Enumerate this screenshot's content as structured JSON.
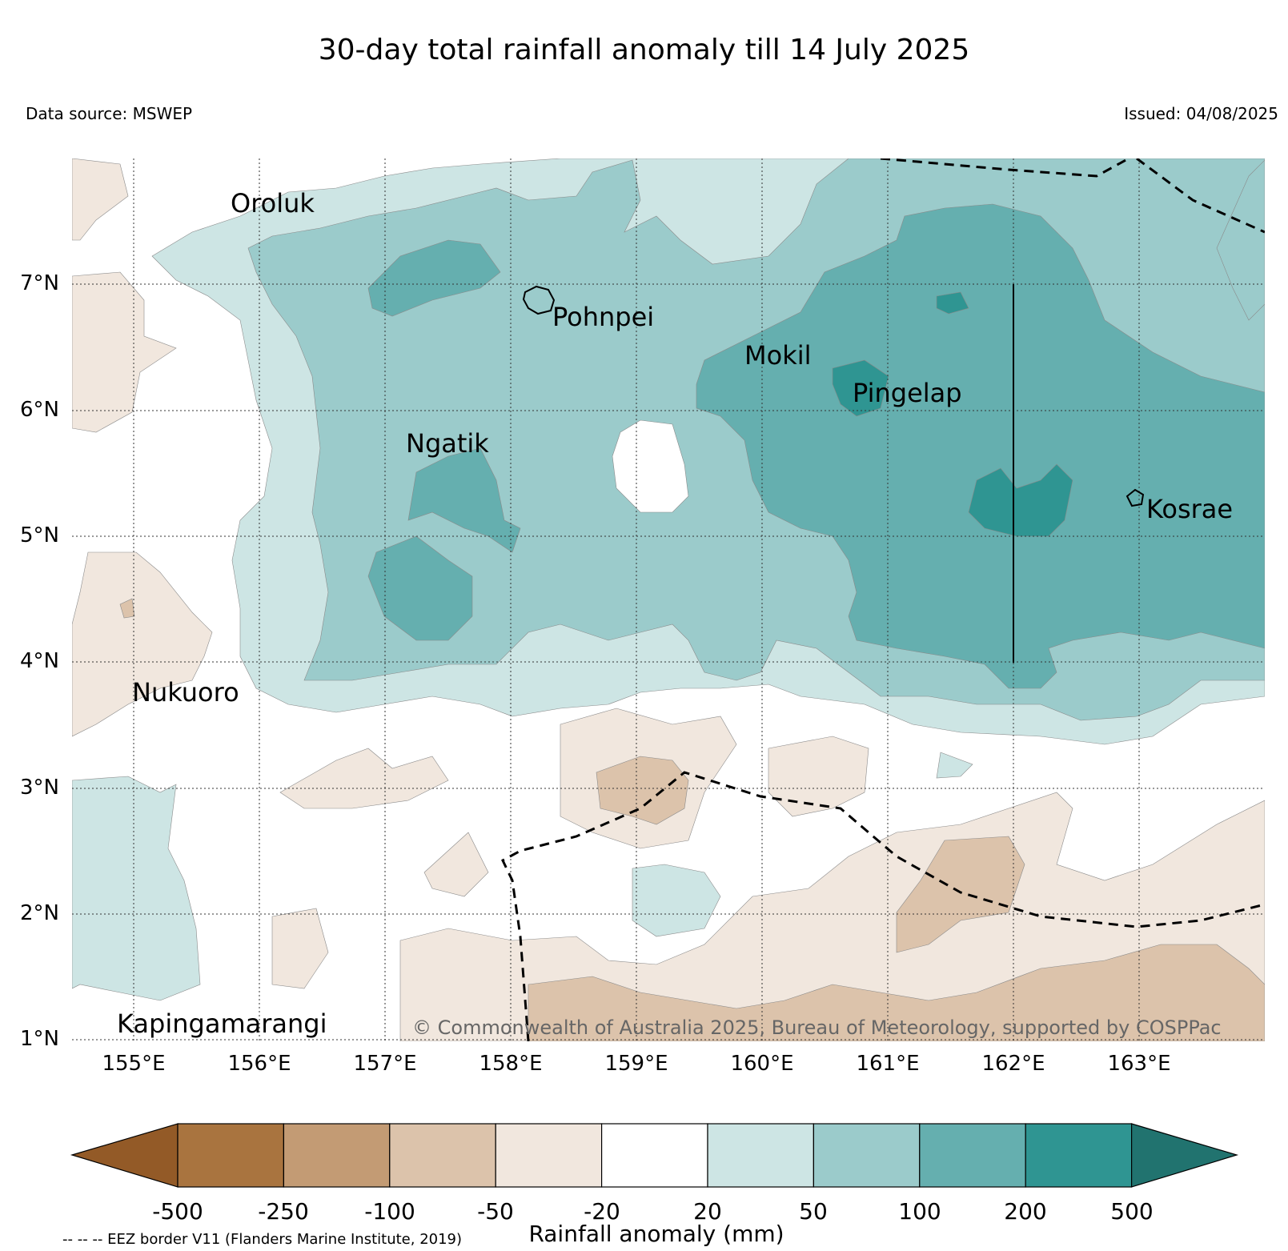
{
  "title": "30-day total rainfall anomaly till 14 July 2025",
  "data_source": "Data source: MSWEP",
  "issued": "Issued: 04/08/2025",
  "latitude_labels": [
    "7°N",
    "6°N",
    "5°N",
    "4°N",
    "3°N",
    "2°N",
    "1°N"
  ],
  "longitude_labels": [
    "155°E",
    "156°E",
    "157°E",
    "158°E",
    "159°E",
    "160°E",
    "161°E",
    "162°E",
    "163°E"
  ],
  "places": {
    "oroluk": "Oroluk",
    "pohnpei": "Pohnpei",
    "mokil": "Mokil",
    "pingelap": "Pingelap",
    "ngatik": "Ngatik",
    "kosrae": "Kosrae",
    "nukuoro": "Nukuoro",
    "kapingamarangi": "Kapingamarangi"
  },
  "copyright": "© Commonwealth of Australia 2025, Bureau of Meteorology, supported by COSPPac",
  "colorbar": {
    "label": "Rainfall anomaly (mm)",
    "ticks": [
      "-500",
      "-250",
      "-100",
      "-50",
      "-20",
      "20",
      "50",
      "100",
      "200",
      "500"
    ],
    "colors": [
      "#935a27",
      "#a9743f",
      "#c39b74",
      "#dcc3ab",
      "#f1e7de",
      "#ffffff",
      "#cde5e4",
      "#9bcbcb",
      "#65afaf",
      "#2f9592",
      "#21736f"
    ]
  },
  "eez_note": "-- -- -- EEZ border V11 (Flanders Marine Institute, 2019)"
}
